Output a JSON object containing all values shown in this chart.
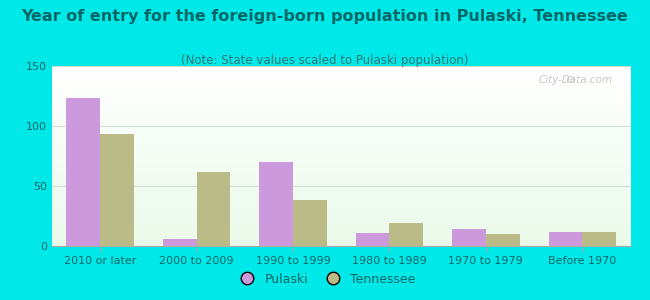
{
  "title": "Year of entry for the foreign-born population in Pulaski, Tennessee",
  "subtitle": "(Note: State values scaled to Pulaski population)",
  "categories": [
    "2010 or later",
    "2000 to 2009",
    "1990 to 1999",
    "1980 to 1989",
    "1970 to 1979",
    "Before 1970"
  ],
  "pulaski_values": [
    123,
    6,
    70,
    11,
    14,
    12
  ],
  "tennessee_values": [
    93,
    62,
    38,
    19,
    10,
    12
  ],
  "pulaski_color": "#cc99dd",
  "tennessee_color": "#bbbb88",
  "ylim": [
    0,
    150
  ],
  "yticks": [
    0,
    50,
    100,
    150
  ],
  "bar_width": 0.35,
  "background_outer": "#00e8e8",
  "grid_color": "#d0ddd0",
  "title_color": "#006666",
  "subtitle_color": "#337777",
  "tick_color": "#006666",
  "title_fontsize": 11.5,
  "subtitle_fontsize": 8.5,
  "tick_fontsize": 8,
  "legend_fontsize": 9
}
